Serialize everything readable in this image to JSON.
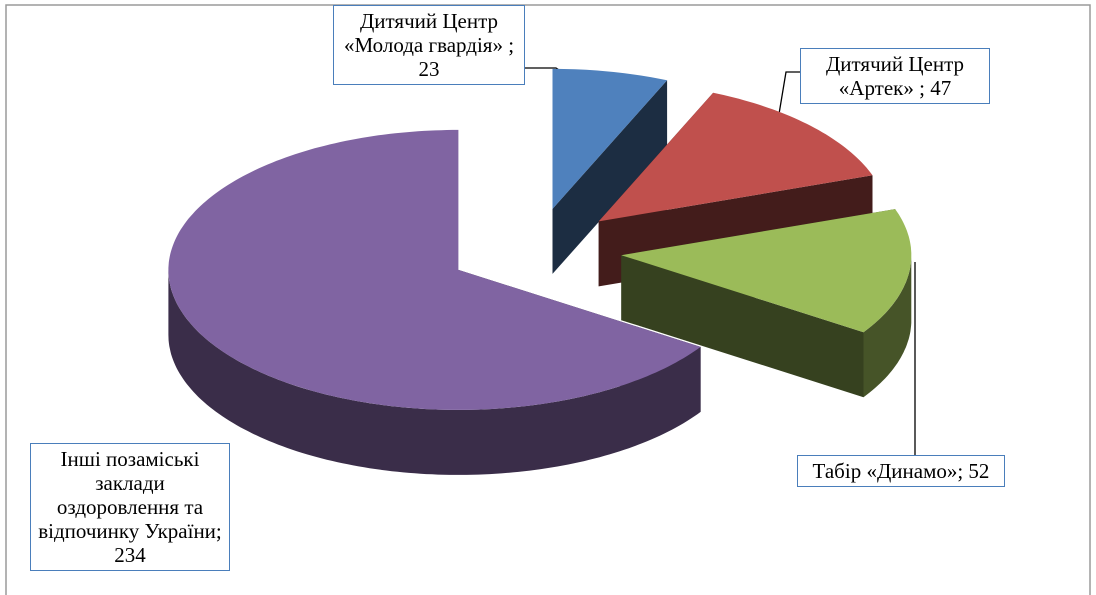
{
  "chart_data": {
    "type": "pie3d",
    "values": [
      23,
      47,
      52,
      234
    ],
    "value_labels": [
      "Дитячий Центр «Молода гвардія» ; 23",
      "Дитячий Центр «Артек» ; 47",
      "Табір «Динамо»; 52",
      "Інші позаміські заклади оздоровлення та відпочинку України; 234"
    ],
    "colors": [
      "#4f81bd",
      "#c0504d",
      "#9bbb59",
      "#8064a2"
    ]
  }
}
